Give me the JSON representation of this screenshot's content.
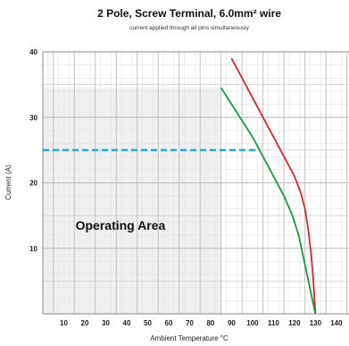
{
  "chart_data": {
    "type": "line",
    "title": "2 Pole, Screw Terminal, 6.0mm² wire",
    "subtitle": "current applied through all pins simultaneously",
    "xlabel": "Ambient Temperature °C",
    "ylabel": "Current (A)",
    "xlim": [
      0,
      146
    ],
    "ylim": [
      0,
      40
    ],
    "x_ticks": [
      10,
      20,
      30,
      40,
      50,
      60,
      70,
      80,
      90,
      100,
      110,
      120,
      130,
      140
    ],
    "y_ticks": [
      10,
      20,
      30,
      40
    ],
    "grid": true,
    "minor_grid": true,
    "series": [
      {
        "color": "#d9272e",
        "x": [
          90,
          95,
          100,
          105,
          110,
          115,
          120,
          123,
          125,
          126.5,
          128,
          129,
          130
        ],
        "y": [
          39,
          36,
          33,
          30,
          27,
          24,
          21,
          18.5,
          16,
          13,
          9,
          5,
          0
        ]
      },
      {
        "color": "#1a9a3e",
        "x": [
          85,
          90,
          95,
          100,
          105,
          110,
          115,
          119,
          122,
          124,
          126,
          128,
          130
        ],
        "y": [
          34.5,
          32,
          29.5,
          27,
          24,
          21,
          18,
          15,
          12,
          9,
          6,
          3,
          0
        ]
      }
    ],
    "operating_area": {
      "label": "Operating Area",
      "x_max": 85,
      "y_max": 34.5,
      "fill_color": "#efefef"
    },
    "reference_line": {
      "y": 25,
      "x_end": 103,
      "color": "#2aa8d8",
      "style": "dashed"
    }
  }
}
